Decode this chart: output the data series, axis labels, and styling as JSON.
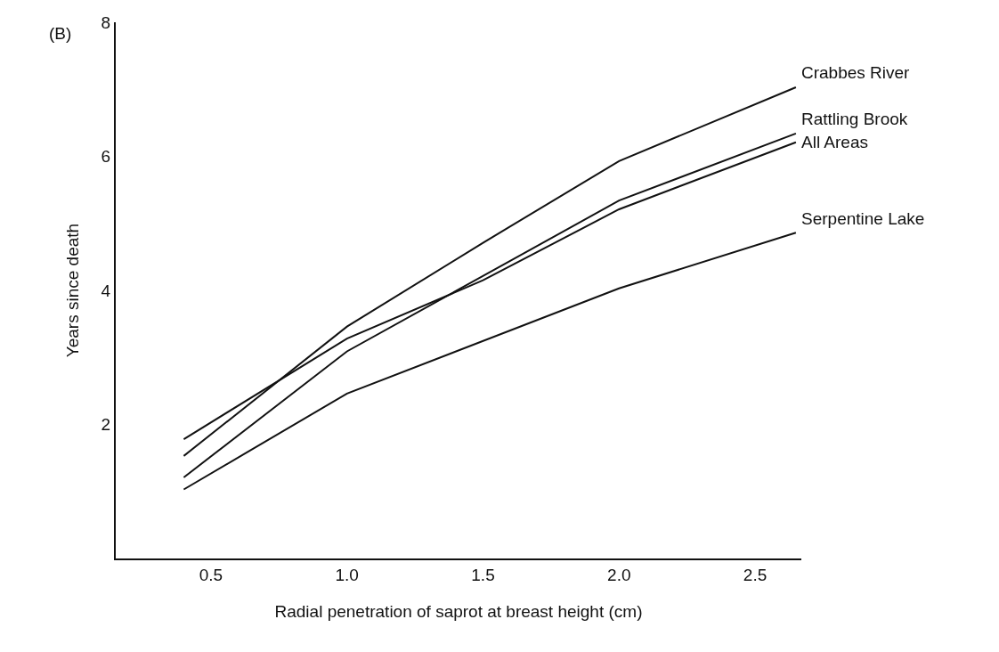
{
  "chart_data": {
    "type": "line",
    "xlabel": "Radial penetration of saprot at breast height (cm)",
    "ylabel": "Years since death",
    "annotations": [
      "(B)"
    ],
    "xlim": [
      0.15,
      2.67
    ],
    "xticks": [
      {
        "value": 0.5,
        "label": "0.5"
      },
      {
        "value": 1,
        "label": "1.0"
      },
      {
        "value": 1.5,
        "label": "1.5"
      },
      {
        "value": 2,
        "label": "2.0"
      },
      {
        "value": 2.5,
        "label": "2.5"
      }
    ],
    "ylim": [
      0,
      8
    ],
    "yticks": [
      2,
      4,
      6,
      8
    ],
    "grid": false,
    "legend": false,
    "marker": "none",
    "line_style": "solid",
    "series": [
      {
        "name": "Crabbes River",
        "color": "#111111",
        "x": [
          0.4,
          1.0,
          1.5,
          2.0,
          2.65
        ],
        "values": [
          1.53,
          3.46,
          4.71,
          5.93,
          7.03
        ]
      },
      {
        "name": "Rattling Brook",
        "color": "#111111",
        "x": [
          0.4,
          1.0,
          2.0,
          2.65
        ],
        "values": [
          1.21,
          3.09,
          5.34,
          6.34
        ]
      },
      {
        "name": "All Areas",
        "color": "#111111",
        "x": [
          0.4,
          1.0,
          1.5,
          2.0,
          2.65
        ],
        "values": [
          1.78,
          3.28,
          4.15,
          5.21,
          6.21
        ]
      },
      {
        "name": "Serpentine Lake",
        "color": "#111111",
        "x": [
          0.4,
          1.0,
          2.0,
          2.65
        ],
        "values": [
          1.03,
          2.46,
          4.03,
          4.86
        ]
      }
    ]
  }
}
